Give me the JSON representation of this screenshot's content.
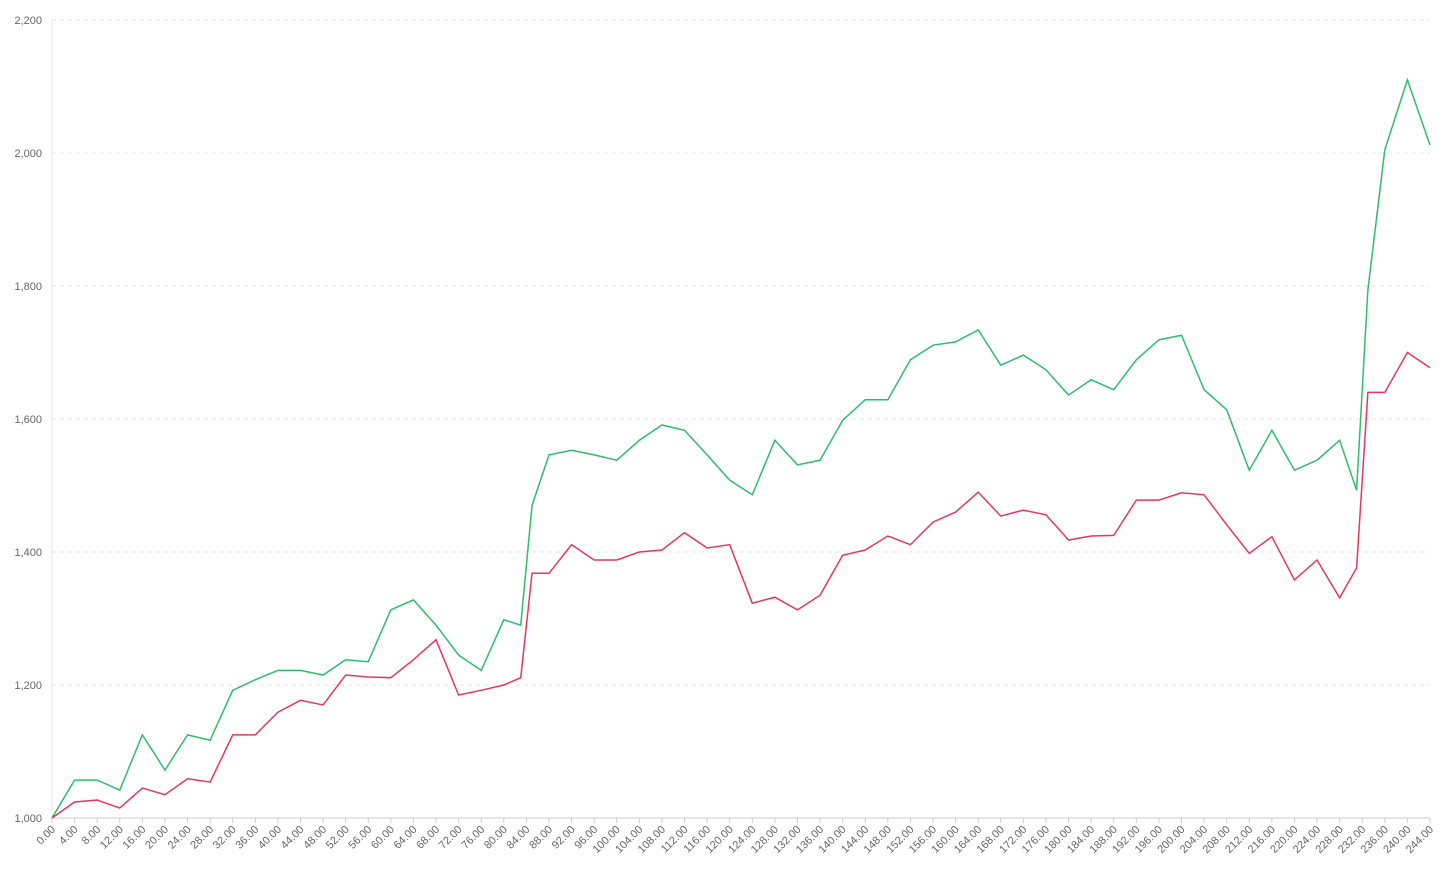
{
  "chart_data": {
    "type": "line",
    "x": [
      0,
      4,
      8,
      12,
      16,
      20,
      24,
      28,
      32,
      36,
      40,
      44,
      48,
      52,
      56,
      60,
      64,
      68,
      72,
      76,
      80,
      83,
      85,
      88,
      92,
      96,
      100,
      104,
      108,
      112,
      116,
      120,
      124,
      128,
      132,
      136,
      140,
      144,
      148,
      152,
      156,
      160,
      164,
      168,
      172,
      176,
      180,
      184,
      188,
      192,
      196,
      200,
      204,
      208,
      212,
      216,
      220,
      224,
      228,
      231,
      233,
      236,
      240,
      244
    ],
    "series": [
      {
        "color": "#2ebd6b",
        "values": [
          1000,
          1057,
          1057,
          1042,
          1125,
          1072,
          1125,
          1117,
          1192,
          1208,
          1222,
          1222,
          1215,
          1238,
          1235,
          1313,
          1328,
          1290,
          1245,
          1222,
          1298,
          1290,
          1470,
          1546,
          1553,
          1546,
          1538,
          1568,
          1591,
          1583,
          1546,
          1508,
          1486,
          1568,
          1531,
          1538,
          1598,
          1629,
          1629,
          1689,
          1711,
          1716,
          1734,
          1681,
          1696,
          1674,
          1636,
          1659,
          1644,
          1689,
          1719,
          1726,
          1644,
          1614,
          1523,
          1583,
          1523,
          1538,
          1568,
          1493,
          1794,
          2005,
          2110,
          2012
        ]
      },
      {
        "color": "#e8365d",
        "values": [
          1000,
          1024,
          1027,
          1015,
          1045,
          1035,
          1059,
          1054,
          1125,
          1125,
          1159,
          1177,
          1170,
          1215,
          1212,
          1211,
          1238,
          1268,
          1185,
          1192,
          1200,
          1211,
          1368,
          1368,
          1411,
          1388,
          1388,
          1400,
          1403,
          1429,
          1406,
          1411,
          1323,
          1332,
          1313,
          1335,
          1395,
          1403,
          1424,
          1411,
          1445,
          1460,
          1490,
          1454,
          1463,
          1456,
          1418,
          1424,
          1425,
          1478,
          1478,
          1489,
          1486,
          1441,
          1398,
          1423,
          1358,
          1388,
          1331,
          1376,
          1640,
          1640,
          1700,
          1677
        ]
      }
    ],
    "xlim": [
      0,
      244
    ],
    "xticks": [
      {
        "value": 0,
        "label": "0.00"
      },
      {
        "value": 4,
        "label": "4.00"
      },
      {
        "value": 8,
        "label": "8.00"
      },
      {
        "value": 12,
        "label": "12.00"
      },
      {
        "value": 16,
        "label": "16.00"
      },
      {
        "value": 20,
        "label": "20.00"
      },
      {
        "value": 24,
        "label": "24.00"
      },
      {
        "value": 28,
        "label": "28.00"
      },
      {
        "value": 32,
        "label": "32.00"
      },
      {
        "value": 36,
        "label": "36.00"
      },
      {
        "value": 40,
        "label": "40.00"
      },
      {
        "value": 44,
        "label": "44.00"
      },
      {
        "value": 48,
        "label": "48.00"
      },
      {
        "value": 52,
        "label": "52.00"
      },
      {
        "value": 56,
        "label": "56.00"
      },
      {
        "value": 60,
        "label": "60.00"
      },
      {
        "value": 64,
        "label": "64.00"
      },
      {
        "value": 68,
        "label": "68.00"
      },
      {
        "value": 72,
        "label": "72.00"
      },
      {
        "value": 76,
        "label": "76.00"
      },
      {
        "value": 80,
        "label": "80.00"
      },
      {
        "value": 84,
        "label": "84.00"
      },
      {
        "value": 88,
        "label": "88.00"
      },
      {
        "value": 92,
        "label": "92.00"
      },
      {
        "value": 96,
        "label": "96.00"
      },
      {
        "value": 100,
        "label": "100.00"
      },
      {
        "value": 104,
        "label": "104.00"
      },
      {
        "value": 108,
        "label": "108.00"
      },
      {
        "value": 112,
        "label": "112.00"
      },
      {
        "value": 116,
        "label": "116.00"
      },
      {
        "value": 120,
        "label": "120.00"
      },
      {
        "value": 124,
        "label": "124.00"
      },
      {
        "value": 128,
        "label": "128.00"
      },
      {
        "value": 132,
        "label": "132.00"
      },
      {
        "value": 136,
        "label": "136.00"
      },
      {
        "value": 140,
        "label": "140.00"
      },
      {
        "value": 144,
        "label": "144.00"
      },
      {
        "value": 148,
        "label": "148.00"
      },
      {
        "value": 152,
        "label": "152.00"
      },
      {
        "value": 156,
        "label": "156.00"
      },
      {
        "value": 160,
        "label": "160.00"
      },
      {
        "value": 164,
        "label": "164.00"
      },
      {
        "value": 168,
        "label": "168.00"
      },
      {
        "value": 172,
        "label": "172.00"
      },
      {
        "value": 176,
        "label": "176.00"
      },
      {
        "value": 180,
        "label": "180.00"
      },
      {
        "value": 184,
        "label": "184.00"
      },
      {
        "value": 188,
        "label": "188.00"
      },
      {
        "value": 192,
        "label": "192.00"
      },
      {
        "value": 196,
        "label": "196.00"
      },
      {
        "value": 200,
        "label": "200.00"
      },
      {
        "value": 204,
        "label": "204.00"
      },
      {
        "value": 208,
        "label": "208.00"
      },
      {
        "value": 212,
        "label": "212.00"
      },
      {
        "value": 216,
        "label": "216.00"
      },
      {
        "value": 220,
        "label": "220.00"
      },
      {
        "value": 224,
        "label": "224.00"
      },
      {
        "value": 228,
        "label": "228.00"
      },
      {
        "value": 232,
        "label": "232.00"
      },
      {
        "value": 236,
        "label": "236.00"
      },
      {
        "value": 240,
        "label": "240.00"
      },
      {
        "value": 244,
        "label": "244.00"
      }
    ],
    "ylim": [
      1000,
      2200
    ],
    "yticks": [
      {
        "value": 1000,
        "label": "1,000"
      },
      {
        "value": 1200,
        "label": "1,200"
      },
      {
        "value": 1400,
        "label": "1,400"
      },
      {
        "value": 1600,
        "label": "1,600"
      },
      {
        "value": 1800,
        "label": "1,800"
      },
      {
        "value": 2000,
        "label": "2,000"
      },
      {
        "value": 2200,
        "label": "2,200"
      }
    ],
    "grid": true
  }
}
